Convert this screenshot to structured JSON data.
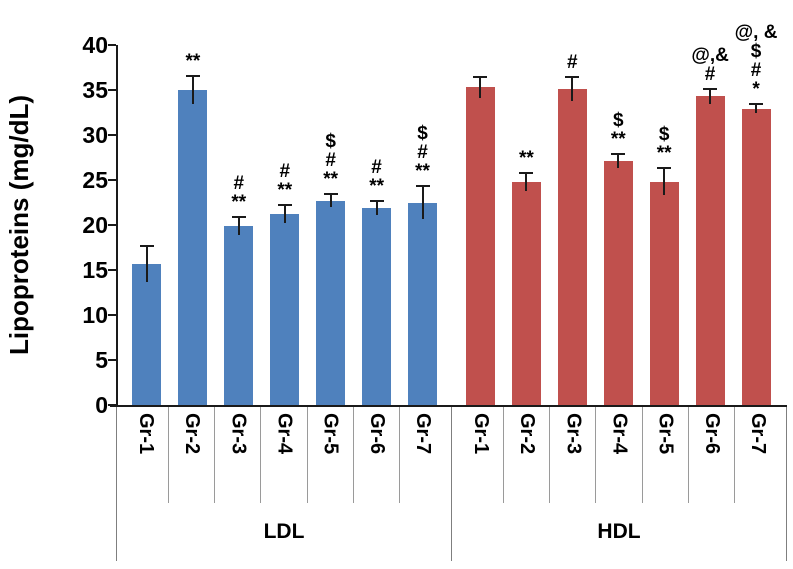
{
  "chart_data": {
    "type": "bar",
    "title": "",
    "xlabel": "",
    "ylabel": "Lipoproteins (mg/dL)",
    "ylim": [
      0,
      40
    ],
    "yticks": [
      0,
      5,
      10,
      15,
      20,
      25,
      30,
      35,
      40
    ],
    "grid": false,
    "legend": "none",
    "error_bars": true,
    "groups": [
      {
        "label": "LDL",
        "color": "#4F81BD",
        "categories": [
          "Gr-1",
          "Gr-2",
          "Gr-3",
          "Gr-4",
          "Gr-5",
          "Gr-6",
          "Gr-7"
        ],
        "values": [
          15.7,
          35.0,
          19.9,
          21.2,
          22.7,
          21.9,
          22.5
        ],
        "errors": [
          2.0,
          1.6,
          1.0,
          1.0,
          0.7,
          0.8,
          1.8
        ],
        "annotations": [
          [],
          [
            "**"
          ],
          [
            "#",
            "**"
          ],
          [
            "#",
            "**"
          ],
          [
            "$",
            "#",
            "**"
          ],
          [
            "#",
            "**"
          ],
          [
            "$",
            "#",
            "**"
          ]
        ]
      },
      {
        "label": "HDL",
        "color": "#C0504D",
        "categories": [
          "Gr-1",
          "Gr-2",
          "Gr-3",
          "Gr-4",
          "Gr-5",
          "Gr-6",
          "Gr-7"
        ],
        "values": [
          35.3,
          24.8,
          35.1,
          27.1,
          24.8,
          34.3,
          32.9
        ],
        "errors": [
          1.2,
          1.0,
          1.3,
          0.8,
          1.5,
          0.8,
          0.5
        ],
        "annotations": [
          [],
          [
            "**"
          ],
          [
            "#"
          ],
          [
            "$",
            "**"
          ],
          [
            "$",
            "**"
          ],
          [
            "@,&",
            "#"
          ],
          [
            "@, &",
            "$",
            "#",
            "*"
          ]
        ]
      }
    ]
  }
}
